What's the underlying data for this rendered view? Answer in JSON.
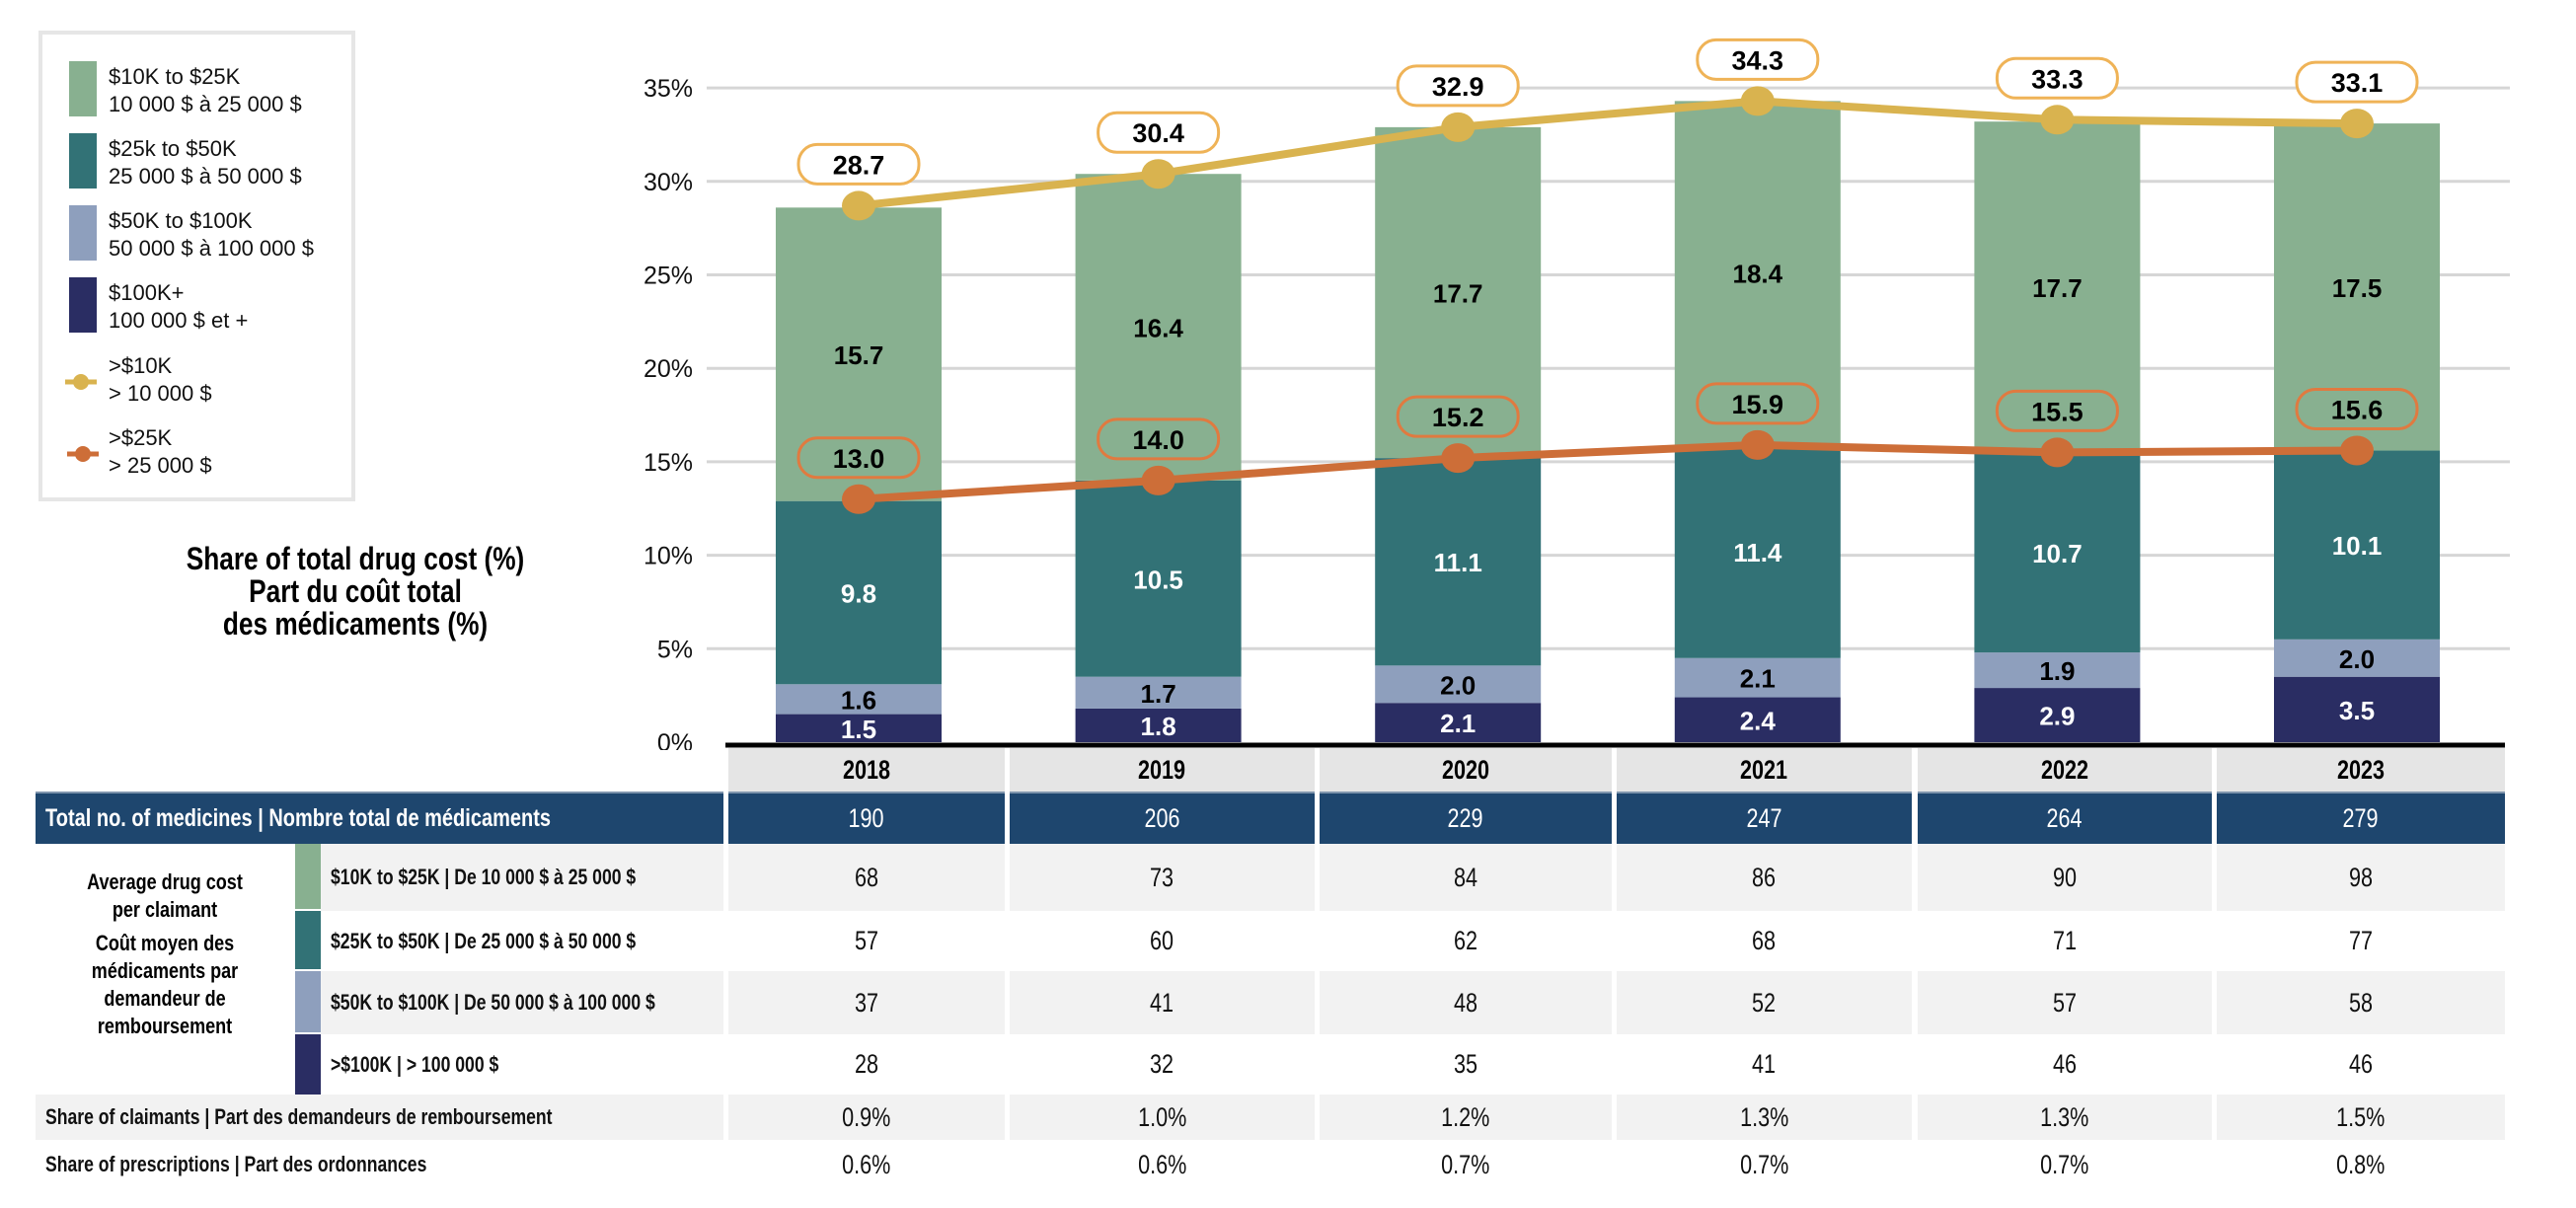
{
  "legend": {
    "items": [
      {
        "type": "bar",
        "label_en": "$10K to $25K",
        "label_fr": "10 000 $ à 25 000 $",
        "color": "#88b090"
      },
      {
        "type": "bar",
        "label_en": "$25k to $50K",
        "label_fr": "25 000 $ à 50 000 $",
        "color": "#327276"
      },
      {
        "type": "bar",
        "label_en": "$50K to $100K",
        "label_fr": "50 000 $ à 100 000 $",
        "color": "#8e9fbd"
      },
      {
        "type": "bar",
        "label_en": "$100K+",
        "label_fr": "100 000 $ et +",
        "color": "#2a2d63"
      },
      {
        "type": "line",
        "label_en": ">$10K",
        "label_fr": "> 10 000 $",
        "color": "#d9b34f"
      },
      {
        "type": "line",
        "label_en": ">$25K",
        "label_fr": "> 25 000 $",
        "color": "#cd6e38"
      }
    ]
  },
  "chart_title": {
    "line1": "Share of total drug cost (%)",
    "line2": "Part du coût total",
    "line3": "des médicaments (%)"
  },
  "chart_data": {
    "type": "bar",
    "stacked": true,
    "title": "Share of total drug cost (%) / Part du coût total des médicaments (%)",
    "xlabel": "",
    "ylabel": "",
    "categories": [
      "2018",
      "2019",
      "2020",
      "2021",
      "2022",
      "2023"
    ],
    "ylim": [
      0,
      35
    ],
    "yticks": [
      0,
      5,
      10,
      15,
      20,
      25,
      30,
      35
    ],
    "ytick_labels": [
      "0%",
      "5%",
      "10%",
      "15%",
      "20%",
      "25%",
      "30%",
      "35%"
    ],
    "grid": true,
    "legend_position": "top-left",
    "series": [
      {
        "name": "$100K+",
        "color": "#2a2d63",
        "label_color": "#ffffff",
        "values": [
          1.5,
          1.8,
          2.1,
          2.4,
          2.9,
          3.5
        ],
        "labels": [
          "1.5",
          "1.8",
          "2.1",
          "2.4",
          "2.9",
          "3.5"
        ]
      },
      {
        "name": "$50K to $100K",
        "color": "#8e9fbd",
        "label_color": "#000000",
        "values": [
          1.6,
          1.7,
          2.0,
          2.1,
          1.9,
          2.0
        ],
        "labels": [
          "1.6",
          "1.7",
          "2.0",
          "2.1",
          "1.9",
          "2.0"
        ]
      },
      {
        "name": "$25k to $50K",
        "color": "#327276",
        "label_color": "#ffffff",
        "values": [
          9.8,
          10.5,
          11.1,
          11.4,
          10.7,
          10.1
        ],
        "labels": [
          "9.8",
          "10.5",
          "11.1",
          "11.4",
          "10.7",
          "10.1"
        ]
      },
      {
        "name": "$10K to $25K",
        "color": "#88b090",
        "label_color": "#000000",
        "values": [
          15.7,
          16.4,
          17.7,
          18.4,
          17.7,
          17.5
        ],
        "labels": [
          "15.7",
          "16.4",
          "17.7",
          "18.4",
          "17.7",
          "17.5"
        ]
      }
    ],
    "lines": [
      {
        "name": ">$10K",
        "color": "#d9b34f",
        "box_border": "#efb357",
        "box_fill": "#ffffff",
        "values": [
          28.7,
          30.4,
          32.9,
          34.3,
          33.3,
          33.1
        ],
        "labels": [
          "28.7",
          "30.4",
          "32.9",
          "34.3",
          "33.3",
          "33.1"
        ]
      },
      {
        "name": ">$25K",
        "color": "#cd6e38",
        "box_border": "#e07a40",
        "box_fill": "none",
        "values": [
          13.0,
          14.0,
          15.2,
          15.9,
          15.5,
          15.6
        ],
        "labels": [
          "13.0",
          "14.0",
          "15.2",
          "15.9",
          "15.5",
          "15.6"
        ]
      }
    ]
  },
  "table": {
    "years": [
      "2018",
      "2019",
      "2020",
      "2021",
      "2022",
      "2023"
    ],
    "total_row": {
      "label": "Total no. of medicines  |  Nombre total de médicaments",
      "values": [
        "190",
        "206",
        "229",
        "247",
        "264",
        "279"
      ]
    },
    "avg_cost_group": {
      "label_lines": [
        "Average drug cost",
        "per claimant",
        "Coût moyen des",
        "médicaments par",
        "demandeur de",
        "remboursement"
      ],
      "rows": [
        {
          "label": "$10K to $25K  |  De 10 000 $ à 25 000 $",
          "color": "#88b090",
          "values": [
            "68",
            "73",
            "84",
            "86",
            "90",
            "98"
          ]
        },
        {
          "label": "$25K to $50K  |  De 25 000 $ à 50 000 $",
          "color": "#327276",
          "values": [
            "57",
            "60",
            "62",
            "68",
            "71",
            "77"
          ]
        },
        {
          "label": "$50K to $100K  |  De 50 000 $ à 100 000 $",
          "color": "#8e9fbd",
          "values": [
            "37",
            "41",
            "48",
            "52",
            "57",
            "58"
          ]
        },
        {
          "label": ">$100K  |  > 100 000 $",
          "color": "#2a2d63",
          "values": [
            "28",
            "32",
            "35",
            "41",
            "46",
            "46"
          ]
        }
      ]
    },
    "share_claimants": {
      "label": "Share of claimants  |  Part des demandeurs de remboursement",
      "values": [
        "0.9%",
        "1.0%",
        "1.2%",
        "1.3%",
        "1.3%",
        "1.5%"
      ]
    },
    "share_prescriptions": {
      "label": "Share of prescriptions  |  Part des ordonnances",
      "values": [
        "0.6%",
        "0.6%",
        "0.7%",
        "0.7%",
        "0.7%",
        "0.8%"
      ]
    }
  }
}
